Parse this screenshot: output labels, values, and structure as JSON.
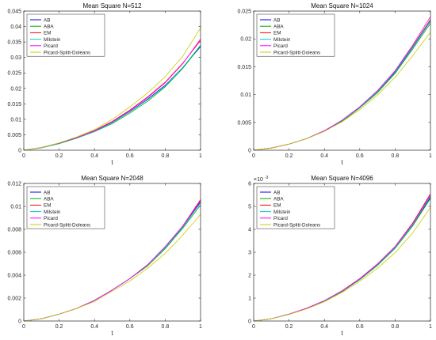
{
  "chart_data": [
    {
      "type": "line",
      "title": "Mean Square N=512",
      "xlabel": "t",
      "ylabel": "",
      "xlim": [
        0,
        1
      ],
      "ylim": [
        0,
        0.045
      ],
      "exponent_label": "",
      "xticks": [
        {
          "v": 0,
          "label": "0"
        },
        {
          "v": 0.2,
          "label": "0.2"
        },
        {
          "v": 0.4,
          "label": "0.4"
        },
        {
          "v": 0.6,
          "label": "0.6"
        },
        {
          "v": 0.8,
          "label": "0.8"
        },
        {
          "v": 1,
          "label": "1"
        }
      ],
      "yticks": [
        {
          "v": 0,
          "label": "0"
        },
        {
          "v": 0.005,
          "label": "0.005"
        },
        {
          "v": 0.01,
          "label": "0.01"
        },
        {
          "v": 0.015,
          "label": "0.015"
        },
        {
          "v": 0.02,
          "label": "0.02"
        },
        {
          "v": 0.025,
          "label": "0.025"
        },
        {
          "v": 0.03,
          "label": "0.03"
        },
        {
          "v": 0.035,
          "label": "0.035"
        },
        {
          "v": 0.04,
          "label": "0.04"
        },
        {
          "v": 0.045,
          "label": "0.045"
        }
      ],
      "legend_position": "top-left",
      "x": [
        0,
        0.1,
        0.2,
        0.3,
        0.4,
        0.5,
        0.6,
        0.7,
        0.8,
        0.9,
        1.0
      ],
      "series": [
        {
          "name": "AB",
          "color": "#0000ff",
          "values": [
            0,
            0.0008,
            0.0022,
            0.004,
            0.0062,
            0.009,
            0.0125,
            0.0165,
            0.021,
            0.0268,
            0.0335
          ]
        },
        {
          "name": "ABA",
          "color": "#00aa00",
          "values": [
            0,
            0.0008,
            0.0021,
            0.0039,
            0.006,
            0.0086,
            0.012,
            0.0158,
            0.0205,
            0.0265,
            0.0338
          ]
        },
        {
          "name": "EM",
          "color": "#ff0000",
          "values": [
            0,
            0.0009,
            0.0023,
            0.0041,
            0.0064,
            0.0093,
            0.013,
            0.0172,
            0.022,
            0.0282,
            0.0355
          ]
        },
        {
          "name": "Milstein",
          "color": "#00cccc",
          "values": [
            0,
            0.0008,
            0.0022,
            0.004,
            0.0061,
            0.0089,
            0.0124,
            0.0163,
            0.0208,
            0.0268,
            0.034
          ]
        },
        {
          "name": "Picard",
          "color": "#ff00ff",
          "values": [
            0,
            0.0009,
            0.0023,
            0.0041,
            0.0063,
            0.0092,
            0.0128,
            0.017,
            0.0218,
            0.028,
            0.036
          ]
        },
        {
          "name": "Picard-Splitt-Doleans",
          "color": "#cccc00",
          "values": [
            0,
            0.0009,
            0.0024,
            0.0043,
            0.0067,
            0.01,
            0.014,
            0.0185,
            0.0238,
            0.0305,
            0.0395
          ]
        }
      ]
    },
    {
      "type": "line",
      "title": "Mean Square N=1024",
      "xlabel": "t",
      "ylabel": "",
      "xlim": [
        0,
        1
      ],
      "ylim": [
        0,
        0.025
      ],
      "exponent_label": "",
      "xticks": [
        {
          "v": 0,
          "label": "0"
        },
        {
          "v": 0.2,
          "label": "0.2"
        },
        {
          "v": 0.4,
          "label": "0.4"
        },
        {
          "v": 0.6,
          "label": "0.6"
        },
        {
          "v": 0.8,
          "label": "0.8"
        },
        {
          "v": 1,
          "label": "1"
        }
      ],
      "yticks": [
        {
          "v": 0,
          "label": "0"
        },
        {
          "v": 0.005,
          "label": "0.005"
        },
        {
          "v": 0.01,
          "label": "0.01"
        },
        {
          "v": 0.015,
          "label": "0.015"
        },
        {
          "v": 0.02,
          "label": "0.02"
        },
        {
          "v": 0.025,
          "label": "0.025"
        }
      ],
      "legend_position": "top-left",
      "x": [
        0,
        0.1,
        0.2,
        0.3,
        0.4,
        0.5,
        0.6,
        0.7,
        0.8,
        0.9,
        1.0
      ],
      "series": [
        {
          "name": "AB",
          "color": "#0000ff",
          "values": [
            0,
            0.0004,
            0.0011,
            0.0021,
            0.0035,
            0.0053,
            0.0077,
            0.0105,
            0.014,
            0.0185,
            0.0232
          ]
        },
        {
          "name": "ABA",
          "color": "#00aa00",
          "values": [
            0,
            0.0004,
            0.0011,
            0.0021,
            0.0034,
            0.0052,
            0.0076,
            0.0103,
            0.0138,
            0.0182,
            0.0228
          ]
        },
        {
          "name": "EM",
          "color": "#ff0000",
          "values": [
            0,
            0.0004,
            0.0011,
            0.0021,
            0.0035,
            0.0053,
            0.0077,
            0.0106,
            0.0142,
            0.0187,
            0.0235
          ]
        },
        {
          "name": "Milstein",
          "color": "#00cccc",
          "values": [
            0,
            0.0004,
            0.0011,
            0.0021,
            0.0034,
            0.0053,
            0.0077,
            0.0105,
            0.0141,
            0.0186,
            0.0233
          ]
        },
        {
          "name": "Picard",
          "color": "#ff00ff",
          "values": [
            0,
            0.0004,
            0.0011,
            0.0021,
            0.0035,
            0.0054,
            0.0078,
            0.0107,
            0.0143,
            0.0189,
            0.024
          ]
        },
        {
          "name": "Picard-Splitt-Doleans",
          "color": "#cccc00",
          "values": [
            0,
            0.0004,
            0.0011,
            0.0021,
            0.0034,
            0.0051,
            0.0073,
            0.0099,
            0.0131,
            0.017,
            0.0212
          ]
        }
      ]
    },
    {
      "type": "line",
      "title": "Mean Square N=2048",
      "xlabel": "t",
      "ylabel": "",
      "xlim": [
        0,
        1
      ],
      "ylim": [
        0,
        0.012
      ],
      "exponent_label": "",
      "xticks": [
        {
          "v": 0,
          "label": "0"
        },
        {
          "v": 0.2,
          "label": "0.2"
        },
        {
          "v": 0.4,
          "label": "0.4"
        },
        {
          "v": 0.6,
          "label": "0.6"
        },
        {
          "v": 0.8,
          "label": "0.8"
        },
        {
          "v": 1,
          "label": "1"
        }
      ],
      "yticks": [
        {
          "v": 0,
          "label": "0"
        },
        {
          "v": 0.002,
          "label": "0.002"
        },
        {
          "v": 0.004,
          "label": "0.004"
        },
        {
          "v": 0.006,
          "label": "0.006"
        },
        {
          "v": 0.008,
          "label": "0.008"
        },
        {
          "v": 0.01,
          "label": "0.01"
        },
        {
          "v": 0.012,
          "label": "0.012"
        }
      ],
      "legend_position": "top-left",
      "x": [
        0,
        0.1,
        0.2,
        0.3,
        0.4,
        0.5,
        0.6,
        0.7,
        0.8,
        0.9,
        1.0
      ],
      "series": [
        {
          "name": "AB",
          "color": "#0000ff",
          "values": [
            0,
            0.0002,
            0.0006,
            0.0011,
            0.0018,
            0.0027,
            0.0037,
            0.0049,
            0.0064,
            0.0082,
            0.0104
          ]
        },
        {
          "name": "ABA",
          "color": "#00aa00",
          "values": [
            0,
            0.0002,
            0.0006,
            0.0011,
            0.0018,
            0.0027,
            0.0037,
            0.0048,
            0.0063,
            0.0081,
            0.0101
          ]
        },
        {
          "name": "EM",
          "color": "#ff0000",
          "values": [
            0,
            0.0002,
            0.0006,
            0.0011,
            0.0018,
            0.0027,
            0.0037,
            0.0049,
            0.0064,
            0.0083,
            0.0106
          ]
        },
        {
          "name": "Milstein",
          "color": "#00cccc",
          "values": [
            0,
            0.0002,
            0.0006,
            0.0011,
            0.0018,
            0.0027,
            0.0037,
            0.0049,
            0.0064,
            0.0082,
            0.0103
          ]
        },
        {
          "name": "Picard",
          "color": "#ff00ff",
          "values": [
            0,
            0.0002,
            0.0006,
            0.0011,
            0.0018,
            0.0027,
            0.0037,
            0.0049,
            0.0065,
            0.0083,
            0.0105
          ]
        },
        {
          "name": "Picard-Splitt-Doleans",
          "color": "#cccc00",
          "values": [
            0,
            0.0002,
            0.0006,
            0.0011,
            0.0017,
            0.0026,
            0.0035,
            0.0046,
            0.0059,
            0.0075,
            0.0093
          ]
        }
      ]
    },
    {
      "type": "line",
      "title": "Mean Square N=4096",
      "xlabel": "t",
      "ylabel": "",
      "xlim": [
        0,
        1
      ],
      "ylim": [
        0,
        6
      ],
      "exponent_label": "×10",
      "exponent_power": "-3",
      "xticks": [
        {
          "v": 0,
          "label": "0"
        },
        {
          "v": 0.2,
          "label": "0.2"
        },
        {
          "v": 0.4,
          "label": "0.4"
        },
        {
          "v": 0.6,
          "label": "0.6"
        },
        {
          "v": 0.8,
          "label": "0.8"
        },
        {
          "v": 1,
          "label": "1"
        }
      ],
      "yticks": [
        {
          "v": 0,
          "label": "0"
        },
        {
          "v": 1,
          "label": "1"
        },
        {
          "v": 2,
          "label": "2"
        },
        {
          "v": 3,
          "label": "3"
        },
        {
          "v": 4,
          "label": "4"
        },
        {
          "v": 5,
          "label": "5"
        },
        {
          "v": 6,
          "label": "6"
        }
      ],
      "legend_position": "top-left",
      "x": [
        0,
        0.1,
        0.2,
        0.3,
        0.4,
        0.5,
        0.6,
        0.7,
        0.8,
        0.9,
        1.0
      ],
      "series": [
        {
          "name": "AB",
          "color": "#0000ff",
          "values": [
            0,
            0.1,
            0.3,
            0.55,
            0.88,
            1.3,
            1.82,
            2.45,
            3.2,
            4.2,
            5.4
          ]
        },
        {
          "name": "ABA",
          "color": "#00aa00",
          "values": [
            0,
            0.1,
            0.29,
            0.54,
            0.87,
            1.28,
            1.8,
            2.42,
            3.17,
            4.15,
            5.35
          ]
        },
        {
          "name": "EM",
          "color": "#ff0000",
          "values": [
            0,
            0.1,
            0.3,
            0.56,
            0.89,
            1.32,
            1.85,
            2.49,
            3.25,
            4.28,
            5.55
          ]
        },
        {
          "name": "Milstein",
          "color": "#00cccc",
          "values": [
            0,
            0.1,
            0.3,
            0.55,
            0.88,
            1.3,
            1.82,
            2.45,
            3.2,
            4.2,
            5.45
          ]
        },
        {
          "name": "Picard",
          "color": "#ff00ff",
          "values": [
            0,
            0.1,
            0.3,
            0.56,
            0.89,
            1.31,
            1.84,
            2.48,
            3.24,
            4.25,
            5.5
          ]
        },
        {
          "name": "Picard-Splitt-Doleans",
          "color": "#cccc00",
          "values": [
            0,
            0.1,
            0.29,
            0.53,
            0.84,
            1.24,
            1.73,
            2.3,
            2.98,
            3.85,
            4.95
          ]
        }
      ]
    }
  ]
}
